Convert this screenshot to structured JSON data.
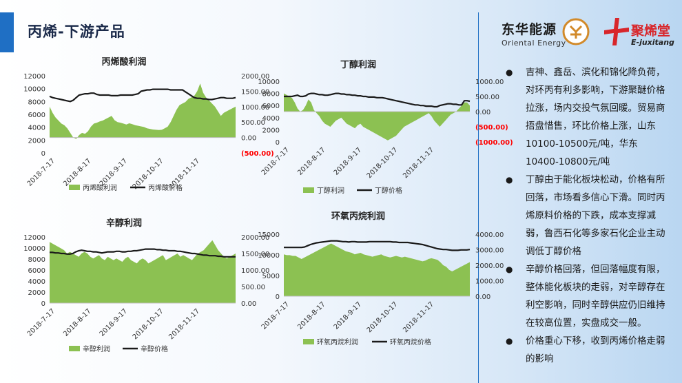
{
  "header": {
    "title": "丙烯-下游产品"
  },
  "logos": {
    "left_cn": "东华能源",
    "left_en": "Oriental Energy",
    "right_cn": "聚烯堂",
    "right_en": "E-juxitang"
  },
  "colors": {
    "accent": "#1f6fc4",
    "area": "#8cc152",
    "line": "#1a1a1a",
    "negative_label": "#ff0000"
  },
  "bullets": [
    "吉神、鑫岳、滨化和锦化降负荷，对环丙有利多影响，下游聚醚价格拉涨，场内交投气氛回暖。贸易商捂盘惜售，环比价格上涨，山东10100-10500元/吨，华东10400-10800元/吨",
    "丁醇由于能化板块松动，价格有所回落，市场看多信心下滑。同时丙烯原料价格的下跌，成本支撑减弱，鲁西石化等多家石化企业主动调低丁醇价格",
    "辛醇价格回落，但回落幅度有限，整体能化板块的走弱，对辛醇存在利空影响，同时辛醇供应仍旧维持在较高位置，实盘成交一般。",
    "价格重心下移，收到丙烯价格走弱的影响"
  ],
  "chart_data": [
    {
      "type": "area",
      "title": "丙烯酸利润",
      "x_ticks": [
        "2018-7-17",
        "2018-8-17",
        "2018-9-17",
        "2018-10-17",
        "2018-11-17"
      ],
      "y_left_ticks": [
        "12000",
        "10000",
        "8000",
        "6000",
        "4000",
        "2000",
        "0"
      ],
      "y_right_ticks": [
        "2000.00",
        "1500.00",
        "1000.00",
        "500.00",
        "0.00",
        "(500.00)"
      ],
      "y_left_range": [
        0,
        12000
      ],
      "y_right_range": [
        -500,
        2000
      ],
      "series": [
        {
          "name": "丙烯酸利润",
          "kind": "area",
          "axis": "right",
          "values": [
            1000,
            800,
            650,
            550,
            450,
            400,
            300,
            150,
            0,
            -50,
            80,
            150,
            120,
            200,
            350,
            450,
            480,
            520,
            550,
            600,
            650,
            700,
            560,
            500,
            480,
            450,
            420,
            460,
            430,
            400,
            380,
            360,
            340,
            300,
            280,
            260,
            250,
            240,
            250,
            300,
            350,
            500,
            700,
            900,
            1050,
            1100,
            1150,
            1250,
            1300,
            1350,
            1500,
            1750,
            1450,
            1300,
            1200,
            1100,
            1000,
            850,
            700,
            800,
            850,
            900,
            950,
            1000
          ]
        },
        {
          "name": "丙烯酸价格",
          "kind": "line",
          "axis": "left",
          "values": [
            8800,
            8600,
            8500,
            8400,
            8300,
            8200,
            8100,
            8000,
            8200,
            8600,
            9000,
            9100,
            9200,
            9200,
            9300,
            9300,
            9100,
            9000,
            9000,
            9000,
            9000,
            8900,
            8900,
            8900,
            9000,
            9000,
            9000,
            9000,
            9000,
            9100,
            9200,
            9600,
            9700,
            9800,
            9800,
            9900,
            9900,
            9900,
            9900,
            9900,
            9900,
            9800,
            9800,
            9800,
            9800,
            9800,
            9500,
            9200,
            8900,
            8600,
            8500,
            8500,
            8400,
            8400,
            8300,
            8300,
            8400,
            8500,
            8600,
            8600,
            8500,
            8500,
            8500,
            8600
          ]
        }
      ]
    },
    {
      "type": "area",
      "title": "丁醇利润",
      "x_ticks": [
        "2018-7-17",
        "2018-8-17",
        "2018-9-17",
        "2018-10-17",
        "2018-11-17"
      ],
      "y_left_ticks": [
        "10000",
        "8000",
        "6000",
        "4000",
        "2000",
        "0"
      ],
      "y_right_ticks": [
        "1000.00",
        "500.00",
        "0.00",
        "(500.00)",
        "(1000.00)"
      ],
      "y_left_range": [
        0,
        10000
      ],
      "y_right_range": [
        -1000,
        1000
      ],
      "series": [
        {
          "name": "丁醇利润",
          "kind": "area",
          "axis": "right",
          "values": [
            600,
            550,
            500,
            450,
            300,
            100,
            0,
            50,
            200,
            400,
            300,
            50,
            -50,
            -150,
            -300,
            -400,
            -450,
            -500,
            -400,
            -300,
            -250,
            -200,
            -300,
            -400,
            -450,
            -500,
            -550,
            -450,
            -400,
            -500,
            -550,
            -600,
            -650,
            -700,
            -750,
            -800,
            -850,
            -900,
            -950,
            -900,
            -850,
            -800,
            -700,
            -600,
            -500,
            -450,
            -400,
            -350,
            -300,
            -250,
            -200,
            -150,
            -100,
            -50,
            -150,
            -300,
            -400,
            -500,
            -400,
            -300,
            -200,
            -100,
            -50,
            0,
            100,
            200,
            300,
            300,
            200
          ]
        },
        {
          "name": "丁醇价格",
          "kind": "line",
          "axis": "left",
          "values": [
            7500,
            7500,
            7500,
            7500,
            7600,
            7700,
            7500,
            7500,
            7600,
            7900,
            8000,
            8000,
            7900,
            7800,
            7800,
            7700,
            7700,
            7800,
            7900,
            8000,
            8000,
            7900,
            7900,
            7800,
            7800,
            7700,
            7700,
            7600,
            7600,
            7500,
            7500,
            7400,
            7400,
            7400,
            7300,
            7300,
            7300,
            7200,
            7100,
            7000,
            6900,
            6800,
            6700,
            6600,
            6500,
            6400,
            6300,
            6200,
            6100,
            6100,
            6000,
            6000,
            5900,
            5900,
            5900,
            5800,
            5800,
            6000,
            6100,
            6200,
            6300,
            6300,
            6200,
            6200,
            6100,
            6100,
            6800,
            6800,
            6700
          ]
        }
      ]
    },
    {
      "type": "area",
      "title": "辛醇利润",
      "x_ticks": [
        "2018-7-17",
        "2018-8-17",
        "2018-9-17",
        "2018-10-17",
        "2018-11-17"
      ],
      "y_left_ticks": [
        "12000",
        "10000",
        "8000",
        "6000",
        "4000",
        "2000",
        "0"
      ],
      "y_right_ticks": [
        "2000.00",
        "1500.00",
        "1000.00",
        "500.00",
        "0.00"
      ],
      "y_left_range": [
        0,
        12000
      ],
      "y_right_range": [
        0,
        2000
      ],
      "series": [
        {
          "name": "辛醇利润",
          "kind": "area",
          "axis": "right",
          "values": [
            1850,
            1800,
            1750,
            1700,
            1650,
            1600,
            1500,
            1550,
            1500,
            1450,
            1400,
            1500,
            1550,
            1500,
            1400,
            1350,
            1400,
            1450,
            1350,
            1300,
            1400,
            1350,
            1300,
            1350,
            1300,
            1250,
            1350,
            1400,
            1300,
            1250,
            1200,
            1300,
            1350,
            1300,
            1200,
            1250,
            1300,
            1350,
            1400,
            1450,
            1300,
            1350,
            1400,
            1450,
            1500,
            1400,
            1450,
            1400,
            1350,
            1300,
            1400,
            1500,
            1550,
            1600,
            1700,
            1800,
            1900,
            1750,
            1600,
            1500,
            1400,
            1350,
            1400,
            1450,
            1500
          ]
        },
        {
          "name": "辛醇价格",
          "kind": "line",
          "axis": "left",
          "values": [
            9200,
            9200,
            9100,
            9100,
            9000,
            9000,
            8900,
            8900,
            9000,
            9300,
            9500,
            9600,
            9500,
            9400,
            9400,
            9300,
            9300,
            9200,
            9100,
            9200,
            9300,
            9300,
            9300,
            9400,
            9400,
            9300,
            9300,
            9400,
            9400,
            9500,
            9500,
            9600,
            9700,
            9800,
            9800,
            9800,
            9800,
            9700,
            9700,
            9600,
            9600,
            9500,
            9500,
            9500,
            9400,
            9400,
            9300,
            9200,
            9100,
            9000,
            9000,
            8900,
            8800,
            8700,
            8700,
            8600,
            8600,
            8600,
            8500,
            8500,
            8400,
            8400,
            8400,
            8400,
            8400
          ]
        }
      ]
    },
    {
      "type": "area",
      "title": "环氧丙烷利润",
      "x_ticks": [
        "2018-7-17",
        "2018-8-17",
        "2018-9-17",
        "2018-10-17",
        "2018-11-17"
      ],
      "y_left_ticks": [
        "15000",
        "10000",
        "5000",
        "0"
      ],
      "y_right_ticks": [
        "4000.00",
        "3000.00",
        "2000.00",
        "1000.00",
        "0.00"
      ],
      "y_left_range": [
        0,
        15000
      ],
      "y_right_range": [
        0,
        4000
      ],
      "series": [
        {
          "name": "环氧丙烷利润",
          "kind": "area",
          "axis": "right",
          "values": [
            2700,
            2650,
            2650,
            2600,
            2600,
            2500,
            2400,
            2500,
            2600,
            2700,
            2800,
            2900,
            3000,
            3100,
            3200,
            3300,
            3400,
            3300,
            3200,
            3100,
            3000,
            2900,
            2850,
            2800,
            2700,
            2750,
            2800,
            2700,
            2650,
            2600,
            2550,
            2600,
            2650,
            2700,
            2600,
            2550,
            2500,
            2550,
            2600,
            2550,
            2500,
            2550,
            2500,
            2450,
            2400,
            2350,
            2300,
            2250,
            2300,
            2400,
            2450,
            2400,
            2350,
            2200,
            2000,
            1900,
            1700,
            1600,
            1700,
            1800,
            1900,
            2000,
            2100,
            2200
          ]
        },
        {
          "name": "环氧丙烷价格",
          "kind": "line",
          "axis": "left",
          "values": [
            11800,
            11800,
            11800,
            11800,
            11800,
            11800,
            11800,
            11900,
            12200,
            12500,
            12700,
            12900,
            13000,
            13100,
            13200,
            13300,
            13400,
            13400,
            13400,
            13300,
            13200,
            13200,
            13100,
            13200,
            13200,
            13100,
            13100,
            13100,
            13100,
            13200,
            13200,
            13200,
            13200,
            13200,
            13200,
            13200,
            13200,
            13100,
            13100,
            13000,
            13000,
            13000,
            13000,
            12900,
            12800,
            12700,
            12600,
            12500,
            12300,
            12100,
            11900,
            11700,
            11500,
            11400,
            11300,
            11300,
            11200,
            11100,
            11100,
            11100,
            11200,
            11200,
            11200,
            11300
          ]
        }
      ]
    }
  ]
}
